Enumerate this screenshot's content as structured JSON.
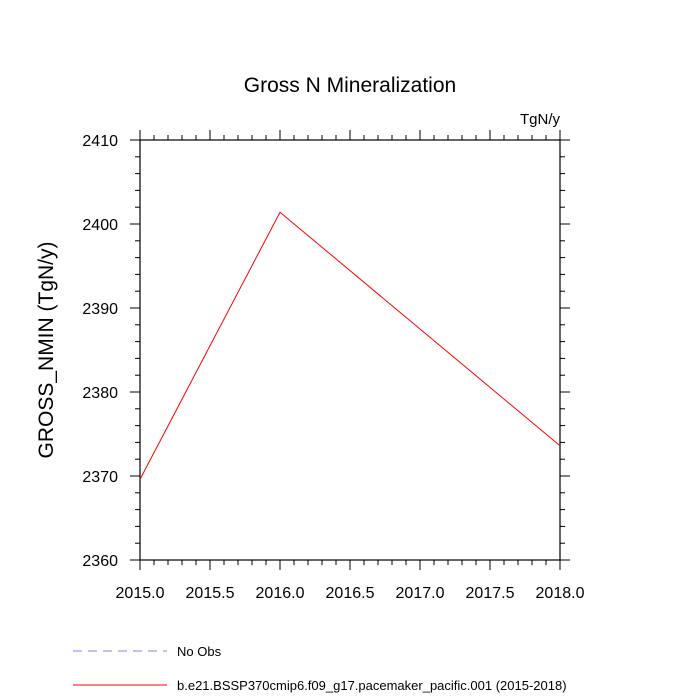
{
  "chart_data": {
    "type": "line",
    "title": "Gross N Mineralization",
    "units": "TgN/y",
    "xlabel": "",
    "ylabel": "GROSS_NMIN  (TgN/y)",
    "xlim": [
      2015.0,
      2018.0
    ],
    "ylim": [
      2360,
      2410
    ],
    "x_ticks": [
      "2015.0",
      "2015.5",
      "2016.0",
      "2016.5",
      "2017.0",
      "2017.5",
      "2018.0"
    ],
    "y_ticks": [
      "2360",
      "2370",
      "2380",
      "2390",
      "2400",
      "2410"
    ],
    "series": [
      {
        "name": "b.e21.BSSP370cmip6.f09_g17.pacemaker_pacific.001 (2015-2018)",
        "color": "#ff0000",
        "style": "solid",
        "x": [
          2015,
          2016,
          2018
        ],
        "values": [
          2369.6,
          2401.4,
          2373.6
        ]
      }
    ],
    "legend": [
      {
        "label": "No Obs",
        "color": "#8080ff",
        "style": "dashed"
      },
      {
        "label": "b.e21.BSSP370cmip6.f09_g17.pacemaker_pacific.001 (2015-2018)",
        "color": "#ff0000",
        "style": "solid"
      }
    ]
  }
}
